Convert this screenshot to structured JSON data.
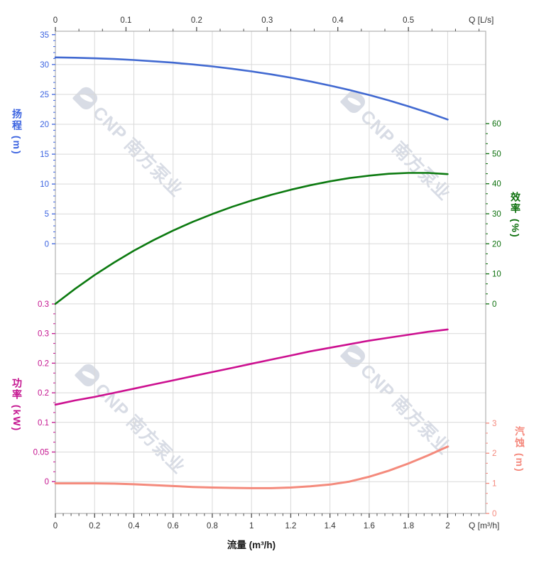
{
  "watermark": {
    "text": "CNP 南方泵业"
  },
  "chart_data": {
    "type": "line",
    "title": "",
    "grid": true,
    "legend": false,
    "colors": {
      "grid": "#d9d9d9",
      "frame": "#b0b0b0",
      "x_tick": "#4d4d4d",
      "x_label_color": "#333333"
    },
    "x_axis_bottom": {
      "label": "流量 (m³/h)",
      "unit": "Q [m³/h]",
      "ticks": [
        0,
        0.2,
        0.4,
        0.6,
        0.8,
        1,
        1.2,
        1.4,
        1.6,
        1.8,
        2
      ],
      "tick_labels": [
        "0",
        "0.2",
        "0.4",
        "0.6",
        "0.8",
        "1",
        "1.2",
        "1.4",
        "1.6",
        "1.8",
        "2"
      ],
      "minor_divisions": 5,
      "range": [
        0,
        2.19
      ]
    },
    "x_axis_top": {
      "unit": "Q [L/s]",
      "ticks": [
        0,
        0.1,
        0.2,
        0.3,
        0.4,
        0.5
      ],
      "tick_labels": [
        "0",
        "0.1",
        "0.2",
        "0.3",
        "0.4",
        "0.5"
      ],
      "minor_divisions": 3,
      "range": [
        0,
        0.61
      ]
    },
    "y_axes": {
      "head": {
        "title": "扬程 (m)",
        "side": "left",
        "color": "#3b63e0",
        "ticks": [
          35,
          30,
          25,
          20,
          15,
          10,
          5,
          0
        ],
        "tick_labels": [
          "35",
          "30",
          "25",
          "20",
          "15",
          "10",
          "5",
          "0"
        ],
        "minor_divisions": 5,
        "grid_values": [
          30,
          25,
          20,
          15,
          10,
          5,
          0
        ],
        "range": [
          0,
          35
        ]
      },
      "efficiency": {
        "title": "效率 (%)",
        "side": "right",
        "color": "#0d700d",
        "ticks": [
          60,
          50,
          40,
          30,
          20,
          10,
          0
        ],
        "tick_labels": [
          "60",
          "50",
          "40",
          "30",
          "20",
          "10",
          "0"
        ],
        "minor_divisions": 3,
        "grid_values": [
          10,
          0
        ],
        "range": [
          0,
          60
        ]
      },
      "power": {
        "title": "功率 (kW)",
        "side": "left",
        "color": "#c4138f",
        "ticks": [
          0.3,
          0.25,
          0.2,
          0.15,
          0.1,
          0.05,
          0
        ],
        "tick_labels": [
          "0.3",
          "0.3",
          "0.2",
          "0.2",
          "0.1",
          "0.05",
          "0"
        ],
        "minor_divisions": 3,
        "grid_values": [
          0.25,
          0.2,
          0.15,
          0.1,
          0.05,
          0
        ],
        "range": [
          0,
          0.3
        ]
      },
      "npsh": {
        "title": "汽蚀 (m)",
        "side": "right",
        "color": "#f5897d",
        "ticks": [
          3,
          2,
          1,
          0
        ],
        "tick_labels": [
          "3",
          "2",
          "1",
          "0"
        ],
        "minor_divisions": 3,
        "grid_values": [],
        "range": [
          0,
          3
        ]
      }
    },
    "series": [
      {
        "name": "head",
        "label": "扬程",
        "axis": "head",
        "color": "#4169d1",
        "width": 2.6,
        "x": [
          0,
          0.1,
          0.2,
          0.3,
          0.4,
          0.5,
          0.6,
          0.7,
          0.8,
          0.9,
          1.0,
          1.1,
          1.2,
          1.3,
          1.4,
          1.5,
          1.6,
          1.7,
          1.8,
          1.9,
          2.0
        ],
        "y": [
          31.2,
          31.14,
          31.04,
          30.92,
          30.75,
          30.54,
          30.31,
          30.02,
          29.68,
          29.29,
          28.85,
          28.35,
          27.79,
          27.17,
          26.48,
          25.73,
          24.9,
          23.99,
          23.01,
          21.95,
          20.8
        ]
      },
      {
        "name": "efficiency",
        "label": "效率",
        "axis": "efficiency",
        "color": "#0c7a10",
        "width": 2.6,
        "x": [
          0,
          0.1,
          0.2,
          0.3,
          0.4,
          0.5,
          0.6,
          0.7,
          0.8,
          0.9,
          1.0,
          1.1,
          1.2,
          1.3,
          1.4,
          1.5,
          1.6,
          1.7,
          1.8,
          1.9,
          2.0
        ],
        "y": [
          0,
          5,
          9.6,
          13.8,
          17.7,
          21.2,
          24.4,
          27.3,
          29.9,
          32.3,
          34.4,
          36.3,
          38,
          39.5,
          40.8,
          41.9,
          42.7,
          43.3,
          43.6,
          43.6,
          43.2
        ]
      },
      {
        "name": "power",
        "label": "功率",
        "axis": "power",
        "color": "#cc1090",
        "width": 2.6,
        "x": [
          0,
          0.1,
          0.2,
          0.3,
          0.4,
          0.5,
          0.6,
          0.7,
          0.8,
          0.9,
          1.0,
          1.1,
          1.2,
          1.3,
          1.4,
          1.5,
          1.6,
          1.7,
          1.8,
          1.9,
          2.0
        ],
        "y": [
          0.13,
          0.137,
          0.143,
          0.15,
          0.157,
          0.164,
          0.171,
          0.178,
          0.185,
          0.192,
          0.199,
          0.206,
          0.213,
          0.22,
          0.226,
          0.232,
          0.238,
          0.243,
          0.248,
          0.253,
          0.257
        ]
      },
      {
        "name": "npsh",
        "label": "汽蚀",
        "axis": "npsh",
        "color": "#f48a7c",
        "width": 3,
        "x": [
          0,
          0.1,
          0.2,
          0.3,
          0.4,
          0.5,
          0.6,
          0.7,
          0.8,
          0.9,
          1.0,
          1.1,
          1.2,
          1.3,
          1.4,
          1.5,
          1.6,
          1.7,
          1.8,
          1.9,
          2.0
        ],
        "y": [
          1.0,
          1.0,
          1.0,
          0.99,
          0.97,
          0.94,
          0.91,
          0.88,
          0.86,
          0.85,
          0.84,
          0.84,
          0.86,
          0.9,
          0.96,
          1.06,
          1.22,
          1.42,
          1.66,
          1.93,
          2.22
        ]
      }
    ]
  }
}
